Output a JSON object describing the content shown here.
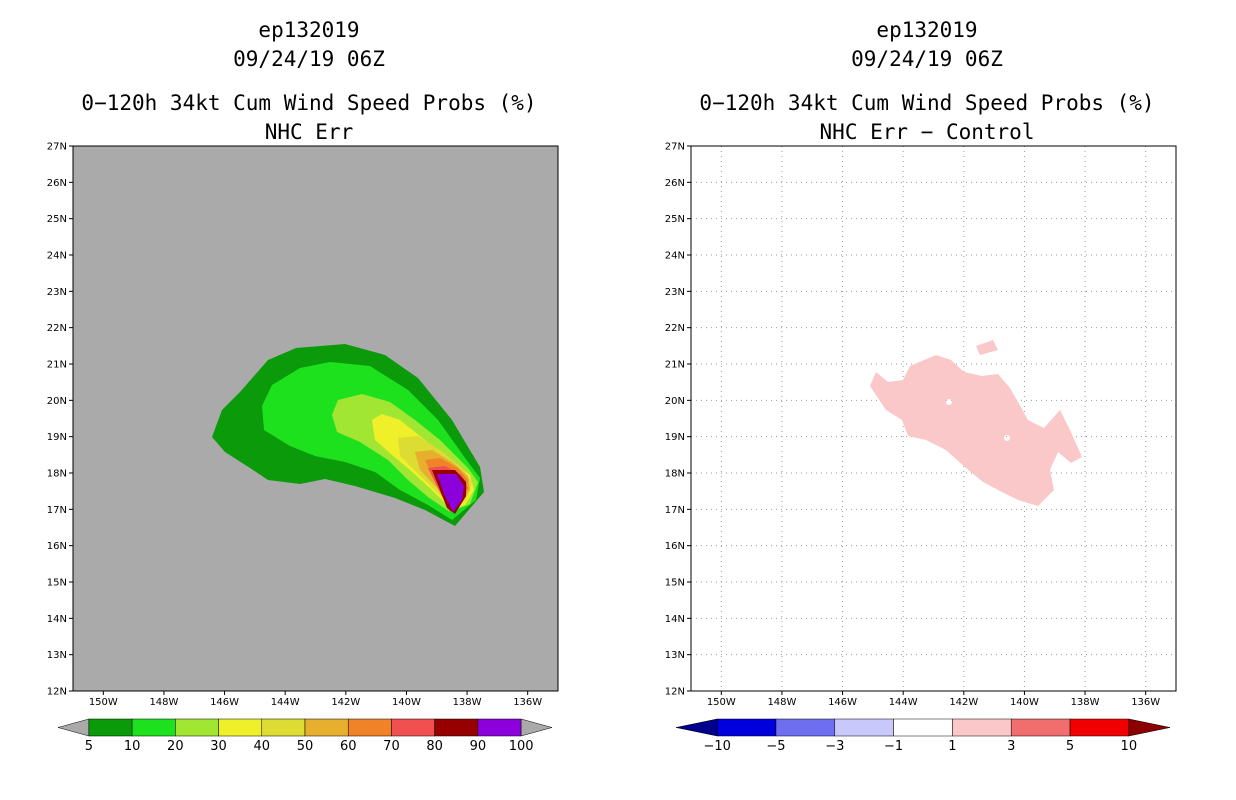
{
  "left_panel": {
    "storm_id": "ep132019",
    "datetime": "09/24/19 06Z",
    "product": "0−120h 34kt Cum Wind Speed Probs (%)",
    "subtitle": "NHC Err",
    "background_color": "#aaaaaa",
    "colorbar": {
      "labels": [
        "5",
        "10",
        "20",
        "30",
        "40",
        "50",
        "60",
        "70",
        "80",
        "90",
        "100"
      ],
      "colors": [
        "#0a9a0a",
        "#1ee11e",
        "#a0e632",
        "#f0f02a",
        "#dcdc32",
        "#e6af2d",
        "#f08228",
        "#f05050",
        "#960000",
        "#8c00dc"
      ],
      "under_color": "#aaaaaa",
      "over_color": "#aaaaaa"
    }
  },
  "right_panel": {
    "storm_id": "ep132019",
    "datetime": "09/24/19 06Z",
    "product": "0−120h 34kt Cum Wind Speed Probs (%)",
    "subtitle": "NHC Err − Control",
    "background_color": "#ffffff",
    "colorbar": {
      "labels": [
        "−10",
        "−5",
        "−3",
        "−1",
        "1",
        "3",
        "5",
        "10"
      ],
      "colors": [
        "#0000dc",
        "#6e6ef0",
        "#c8c8fa",
        "#ffffff",
        "#fac8c8",
        "#f06e6e",
        "#f00000"
      ],
      "under_color": "#00008c",
      "over_color": "#8c0000"
    }
  },
  "map": {
    "lat_labels": [
      "27N",
      "26N",
      "25N",
      "24N",
      "23N",
      "22N",
      "21N",
      "20N",
      "19N",
      "18N",
      "17N",
      "16N",
      "15N",
      "14N",
      "13N",
      "12N"
    ],
    "lon_labels": [
      "150W",
      "148W",
      "146W",
      "144W",
      "142W",
      "140W",
      "138W",
      "136W"
    ]
  }
}
